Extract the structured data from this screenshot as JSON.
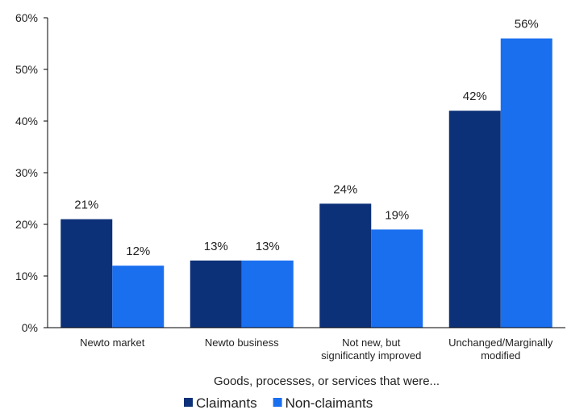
{
  "chart_data": {
    "type": "bar",
    "categories": [
      [
        "Newto market"
      ],
      [
        "Newto business"
      ],
      [
        "Not new, but",
        "significantly improved"
      ],
      [
        "Unchanged/Marginally",
        "modified"
      ]
    ],
    "series": [
      {
        "name": "Claimants",
        "values": [
          21,
          13,
          24,
          42
        ],
        "labels": [
          "21%",
          "13%",
          "24%",
          "42%"
        ],
        "color": "#0d3178"
      },
      {
        "name": "Non-claimants",
        "values": [
          12,
          13,
          19,
          56
        ],
        "labels": [
          "12%",
          "13%",
          "19%",
          "56%"
        ],
        "color": "#1a6fef"
      }
    ],
    "xlabel": "Goods, processes, or services that were...",
    "ylabel": "",
    "ylim": [
      0,
      60
    ],
    "yticks": [
      "0%",
      "10%",
      "20%",
      "30%",
      "40%",
      "50%",
      "60%"
    ],
    "grid": false,
    "legend_position": "bottom"
  }
}
